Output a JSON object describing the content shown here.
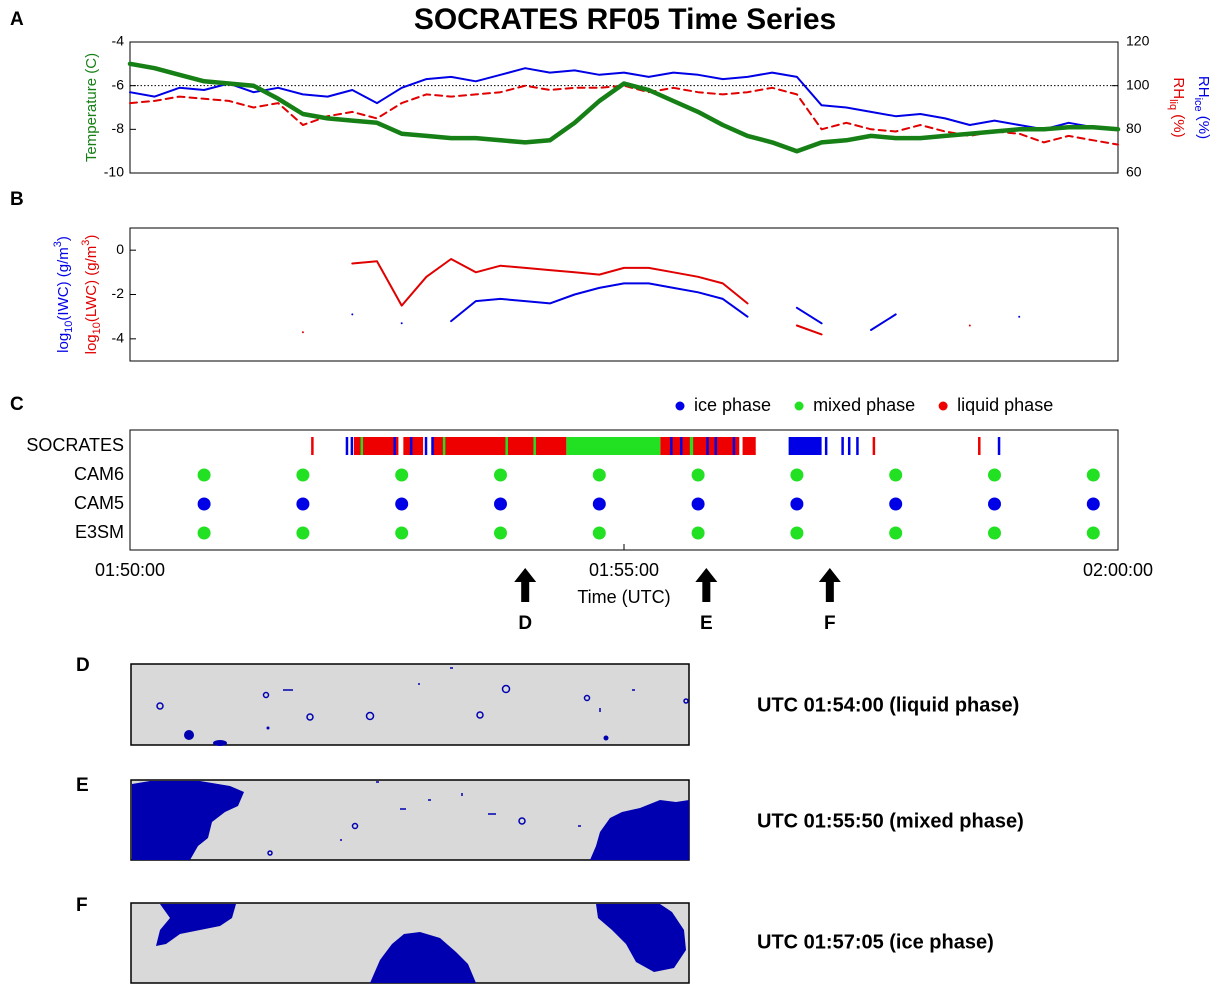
{
  "title": "SOCRATES RF05 Time Series",
  "panel_labels": [
    "A",
    "B",
    "C"
  ],
  "chart_data": [
    {
      "type": "line",
      "xlim": [
        "01:50:00",
        "02:00:00"
      ],
      "ylim": [
        -10,
        -4
      ],
      "yticks": [
        -4,
        -6,
        -8,
        -10
      ],
      "y2lim": [
        60,
        120
      ],
      "y2ticks": [
        60,
        80,
        100,
        120
      ],
      "ylabel": {
        "parts": [
          "Temperature (C)"
        ],
        "color": "#168016"
      },
      "y2labels": [
        {
          "parts": [
            "RH",
            {
              "sub": "liq"
            },
            " (%)"
          ],
          "color": "#e00000"
        },
        {
          "parts": [
            "RH",
            {
              "sub": "ice"
            },
            " (%)"
          ],
          "color": "#0000e6"
        }
      ],
      "reference_line": {
        "axis": "y2",
        "value": 100
      },
      "x": [
        "01:50:00",
        "01:50:15",
        "01:50:30",
        "01:50:45",
        "01:51:00",
        "01:51:15",
        "01:51:30",
        "01:51:45",
        "01:52:00",
        "01:52:15",
        "01:52:30",
        "01:52:45",
        "01:53:00",
        "01:53:15",
        "01:53:30",
        "01:53:45",
        "01:54:00",
        "01:54:15",
        "01:54:30",
        "01:54:45",
        "01:55:00",
        "01:55:15",
        "01:55:30",
        "01:55:45",
        "01:56:00",
        "01:56:15",
        "01:56:30",
        "01:56:45",
        "01:57:00",
        "01:57:15",
        "01:57:30",
        "01:57:45",
        "01:58:00",
        "01:58:15",
        "01:58:30",
        "01:58:45",
        "01:59:00",
        "01:59:15",
        "01:59:30",
        "01:59:45",
        "02:00:00"
      ],
      "series": [
        {
          "color": "#e00000",
          "axis": "y2",
          "dashed": true,
          "width": 2,
          "values": [
            92,
            93,
            95,
            94,
            93,
            90,
            92,
            82,
            86,
            88,
            85,
            92,
            96,
            95,
            96,
            97,
            100,
            98,
            99,
            99,
            100,
            97,
            99,
            97,
            96,
            97,
            99,
            96,
            80,
            83,
            80,
            79,
            82,
            79,
            77,
            79,
            78,
            74,
            77,
            75,
            73
          ]
        },
        {
          "color": "#0000e6",
          "axis": "y2",
          "dashed": false,
          "width": 2,
          "values": [
            97,
            95,
            99,
            98,
            101,
            97,
            99,
            96,
            95,
            98,
            92,
            99,
            103,
            104,
            102,
            105,
            108,
            106,
            107,
            105,
            106,
            104,
            106,
            105,
            103,
            104,
            106,
            104,
            91,
            90,
            88,
            86,
            87,
            85,
            82,
            84,
            82,
            80,
            83,
            81,
            80
          ]
        },
        {
          "color": "#168016",
          "axis": "y",
          "dashed": false,
          "width": 4.5,
          "values": [
            -5.0,
            -5.2,
            -5.5,
            -5.8,
            -5.9,
            -6.0,
            -6.6,
            -7.3,
            -7.5,
            -7.6,
            -7.7,
            -8.2,
            -8.3,
            -8.4,
            -8.4,
            -8.5,
            -8.6,
            -8.5,
            -7.7,
            -6.7,
            -5.9,
            -6.2,
            -6.7,
            -7.2,
            -7.8,
            -8.3,
            -8.6,
            -9.0,
            -8.6,
            -8.5,
            -8.3,
            -8.4,
            -8.4,
            -8.3,
            -8.2,
            -8.1,
            -8.0,
            -8.0,
            -7.9,
            -7.9,
            -8.0
          ]
        }
      ]
    },
    {
      "type": "line",
      "xlim": [
        "01:50:00",
        "02:00:00"
      ],
      "ylim": [
        -5,
        1
      ],
      "yticks": [
        0,
        -2,
        -4
      ],
      "ylabels": [
        {
          "parts": [
            "log",
            {
              "sub": "10"
            },
            "(IWC) (g/m",
            {
              "sup": "3"
            },
            ")"
          ],
          "color": "#0000e6"
        },
        {
          "parts": [
            "log",
            {
              "sub": "10"
            },
            "(LWC) (g/m",
            {
              "sup": "3"
            },
            ")"
          ],
          "color": "#e00000"
        }
      ],
      "x": [
        "01:50:00",
        "01:50:15",
        "01:50:30",
        "01:50:45",
        "01:51:00",
        "01:51:15",
        "01:51:30",
        "01:51:45",
        "01:52:00",
        "01:52:15",
        "01:52:30",
        "01:52:45",
        "01:53:00",
        "01:53:15",
        "01:53:30",
        "01:53:45",
        "01:54:00",
        "01:54:15",
        "01:54:30",
        "01:54:45",
        "01:55:00",
        "01:55:15",
        "01:55:30",
        "01:55:45",
        "01:56:00",
        "01:56:15",
        "01:56:30",
        "01:56:45",
        "01:57:00",
        "01:57:15",
        "01:57:30",
        "01:57:45",
        "01:58:00",
        "01:58:15",
        "01:58:30",
        "01:58:45",
        "01:59:00",
        "01:59:15",
        "01:59:30",
        "01:59:45",
        "02:00:00"
      ],
      "series": [
        {
          "color": "#e00000",
          "width": 2,
          "values": [
            null,
            null,
            null,
            null,
            null,
            null,
            null,
            -3.7,
            null,
            -0.6,
            -0.5,
            -2.5,
            -1.2,
            -0.4,
            -1.0,
            -0.7,
            -0.8,
            -0.9,
            -1.0,
            -1.1,
            -0.8,
            -0.8,
            -1.0,
            -1.2,
            -1.5,
            -2.4,
            null,
            -3.4,
            -3.8,
            null,
            null,
            null,
            null,
            null,
            -3.4,
            null,
            null,
            null,
            null,
            null,
            null
          ]
        },
        {
          "color": "#0000e6",
          "width": 2,
          "values": [
            null,
            null,
            null,
            null,
            null,
            null,
            null,
            null,
            null,
            -2.9,
            null,
            -3.3,
            null,
            -3.2,
            -2.3,
            -2.2,
            -2.3,
            -2.4,
            -2.0,
            -1.7,
            -1.5,
            -1.5,
            -1.7,
            -1.9,
            -2.2,
            -3.0,
            null,
            -2.6,
            -3.3,
            null,
            -3.6,
            -2.9,
            null,
            null,
            null,
            null,
            -3.0,
            null,
            null,
            null,
            null
          ]
        }
      ]
    },
    {
      "type": "phase",
      "xlim": [
        "01:50:00",
        "02:00:00"
      ],
      "xticks": [
        "01:50:00",
        "01:55:00",
        "02:00:00"
      ],
      "xlabel": "Time (UTC)",
      "categories": [
        "SOCRATES",
        "CAM6",
        "CAM5",
        "E3SM"
      ],
      "series": [
        {
          "name": "ice phase",
          "color": "#0000e6",
          "rows": [
            [
              [
                "01:52:11",
                "01:52:12"
              ],
              [
                "01:52:14",
                "01:52:15"
              ],
              [
                "01:52:40",
                "01:52:41"
              ],
              [
                "01:52:50",
                "01:52:51"
              ],
              [
                "01:52:59",
                "01:53:00"
              ],
              [
                "01:53:03",
                "01:53:04"
              ],
              [
                "01:55:28",
                "01:55:29"
              ],
              [
                "01:55:34",
                "01:55:35"
              ],
              [
                "01:55:50",
                "01:55:51"
              ],
              [
                "01:55:55",
                "01:55:56"
              ],
              [
                "01:56:06",
                "01:56:07"
              ],
              [
                "01:56:40",
                "01:57:00"
              ],
              [
                "01:57:02",
                "01:57:03"
              ],
              [
                "01:57:12",
                "01:57:13"
              ],
              [
                "01:57:16",
                "01:57:17"
              ],
              [
                "01:57:21",
                "01:57:22"
              ],
              [
                "01:58:47",
                "01:58:48"
              ]
            ],
            [],
            [
              "01:50:45",
              "01:51:45",
              "01:52:45",
              "01:53:45",
              "01:54:45",
              "01:55:45",
              "01:56:45",
              "01:57:45",
              "01:58:45",
              "01:59:45"
            ],
            []
          ]
        },
        {
          "name": "mixed phase",
          "color": "#22e022",
          "rows": [
            [
              [
                "01:52:20",
                "01:52:21"
              ],
              [
                "01:53:10",
                "01:53:11"
              ],
              [
                "01:53:48",
                "01:53:49"
              ],
              [
                "01:54:05",
                "01:54:06"
              ],
              [
                "01:54:25",
                "01:55:22"
              ],
              [
                "01:55:40",
                "01:55:42"
              ],
              [
                "01:56:40",
                "01:56:42"
              ]
            ],
            [
              "01:50:45",
              "01:51:45",
              "01:52:45",
              "01:53:45",
              "01:54:45",
              "01:55:45",
              "01:56:45",
              "01:57:45",
              "01:58:45",
              "01:59:45"
            ],
            [],
            [
              "01:50:45",
              "01:51:45",
              "01:52:45",
              "01:53:45",
              "01:54:45",
              "01:55:45",
              "01:56:45",
              "01:57:45",
              "01:58:45",
              "01:59:45"
            ]
          ]
        },
        {
          "name": "liquid phase",
          "color": "#ee0000",
          "rows": [
            [
              [
                "01:51:50",
                "01:51:51"
              ],
              [
                "01:52:16",
                "01:52:43"
              ],
              [
                "01:52:46",
                "01:52:58"
              ],
              [
                "01:53:03",
                "01:54:25"
              ],
              [
                "01:55:22",
                "01:56:10"
              ],
              [
                "01:56:12",
                "01:56:20"
              ],
              [
                "01:57:31",
                "01:57:32"
              ],
              [
                "01:58:35",
                "01:58:36"
              ]
            ],
            [],
            [],
            []
          ]
        }
      ],
      "annotations": [
        {
          "x": "01:54:00",
          "label": "D"
        },
        {
          "x": "01:55:50",
          "label": "E"
        },
        {
          "x": "01:57:05",
          "label": "F"
        }
      ]
    }
  ],
  "images": [
    {
      "label": "D",
      "caption": "UTC 01:54:00 (liquid phase)"
    },
    {
      "label": "E",
      "caption": "UTC 01:55:50 (mixed phase)"
    },
    {
      "label": "F",
      "caption": "UTC 01:57:05 (ice phase)"
    }
  ]
}
